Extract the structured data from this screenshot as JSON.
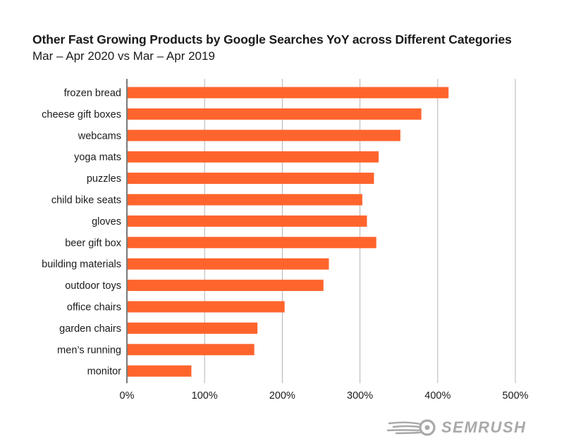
{
  "chart_data": {
    "type": "bar",
    "orientation": "horizontal",
    "title": "Other Fast Growing Products by Google Searches YoY across Different Categories",
    "subtitle": "Mar – Apr 2020 vs Mar – Apr 2019",
    "categories": [
      "frozen bread",
      "cheese gift boxes",
      "webcams",
      "yoga mats",
      "puzzles",
      "child bike seats",
      "gloves",
      "beer gift box",
      "building materials",
      "outdoor toys",
      "office chairs",
      "garden chairs",
      "men’s running",
      "monitor"
    ],
    "values": [
      414,
      379,
      352,
      324,
      318,
      303,
      309,
      321,
      260,
      253,
      203,
      168,
      164,
      83
    ],
    "xlim": [
      0,
      500
    ],
    "xticks": [
      0,
      100,
      200,
      300,
      400,
      500
    ],
    "tick_labels": [
      "0%",
      "100%",
      "200%",
      "300%",
      "400%",
      "500%"
    ],
    "grid": true,
    "bar_color": "#ff642d",
    "grid_color": "#b3b3b3"
  },
  "brand": {
    "name": "semrush",
    "color": "#a9a9a9"
  }
}
